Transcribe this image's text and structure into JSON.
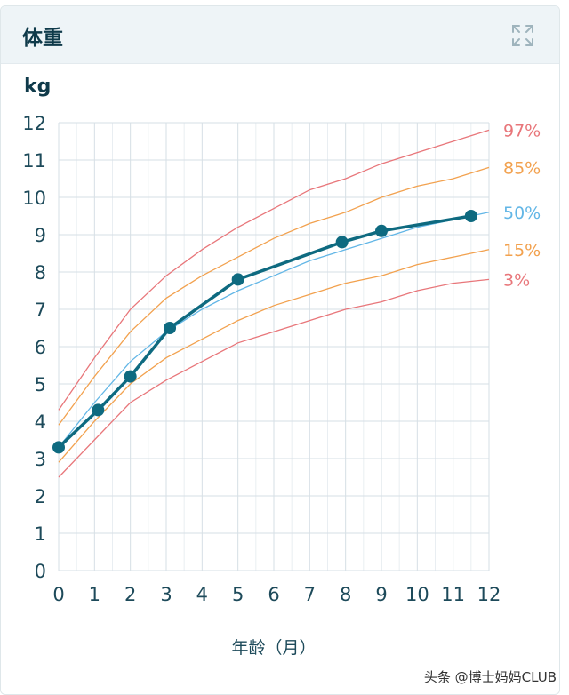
{
  "panel": {
    "title": "体重",
    "unit": "kg",
    "expand_icon": "expand-arrows-icon"
  },
  "watermark": "头条 @博士妈妈CLUB",
  "chart_data": {
    "type": "line",
    "xlabel": "年龄（月）",
    "ylabel": "kg",
    "xlim": [
      0,
      12
    ],
    "ylim": [
      0,
      12
    ],
    "xticks": [
      "0",
      "1",
      "2",
      "3",
      "4",
      "5",
      "6",
      "7",
      "8",
      "9",
      "10",
      "11",
      "12"
    ],
    "yticks": [
      "0",
      "1",
      "2",
      "3",
      "4",
      "5",
      "6",
      "7",
      "8",
      "9",
      "10",
      "11",
      "12"
    ],
    "grid": true,
    "percentile_curves": [
      {
        "name": "97%",
        "color": "#e8767a",
        "points": [
          [
            0,
            4.3
          ],
          [
            1,
            5.7
          ],
          [
            2,
            7.0
          ],
          [
            3,
            7.9
          ],
          [
            4,
            8.6
          ],
          [
            5,
            9.2
          ],
          [
            6,
            9.7
          ],
          [
            7,
            10.2
          ],
          [
            8,
            10.5
          ],
          [
            9,
            10.9
          ],
          [
            10,
            11.2
          ],
          [
            11,
            11.5
          ],
          [
            12,
            11.8
          ]
        ]
      },
      {
        "name": "85%",
        "color": "#f2a14e",
        "points": [
          [
            0,
            3.9
          ],
          [
            1,
            5.2
          ],
          [
            2,
            6.4
          ],
          [
            3,
            7.3
          ],
          [
            4,
            7.9
          ],
          [
            5,
            8.4
          ],
          [
            6,
            8.9
          ],
          [
            7,
            9.3
          ],
          [
            8,
            9.6
          ],
          [
            9,
            10.0
          ],
          [
            10,
            10.3
          ],
          [
            11,
            10.5
          ],
          [
            12,
            10.8
          ]
        ]
      },
      {
        "name": "50%",
        "color": "#62b6e6",
        "points": [
          [
            0,
            3.3
          ],
          [
            1,
            4.5
          ],
          [
            2,
            5.6
          ],
          [
            3,
            6.4
          ],
          [
            4,
            7.0
          ],
          [
            5,
            7.5
          ],
          [
            6,
            7.9
          ],
          [
            7,
            8.3
          ],
          [
            8,
            8.6
          ],
          [
            9,
            8.9
          ],
          [
            10,
            9.2
          ],
          [
            11,
            9.4
          ],
          [
            12,
            9.6
          ]
        ]
      },
      {
        "name": "15%",
        "color": "#f2a14e",
        "points": [
          [
            0,
            2.9
          ],
          [
            1,
            4.0
          ],
          [
            2,
            5.0
          ],
          [
            3,
            5.7
          ],
          [
            4,
            6.2
          ],
          [
            5,
            6.7
          ],
          [
            6,
            7.1
          ],
          [
            7,
            7.4
          ],
          [
            8,
            7.7
          ],
          [
            9,
            7.9
          ],
          [
            10,
            8.2
          ],
          [
            11,
            8.4
          ],
          [
            12,
            8.6
          ]
        ]
      },
      {
        "name": "3%",
        "color": "#e8767a",
        "points": [
          [
            0,
            2.5
          ],
          [
            1,
            3.5
          ],
          [
            2,
            4.5
          ],
          [
            3,
            5.1
          ],
          [
            4,
            5.6
          ],
          [
            5,
            6.1
          ],
          [
            6,
            6.4
          ],
          [
            7,
            6.7
          ],
          [
            8,
            7.0
          ],
          [
            9,
            7.2
          ],
          [
            10,
            7.5
          ],
          [
            11,
            7.7
          ],
          [
            12,
            7.8
          ]
        ]
      }
    ],
    "series": [
      {
        "color": "#0e6a80",
        "points": [
          [
            0,
            3.3
          ],
          [
            1.1,
            4.3
          ],
          [
            2,
            5.2
          ],
          [
            3.1,
            6.5
          ],
          [
            5,
            7.8
          ],
          [
            7.9,
            8.8
          ],
          [
            9,
            9.1
          ],
          [
            11.5,
            9.5
          ]
        ]
      }
    ]
  }
}
